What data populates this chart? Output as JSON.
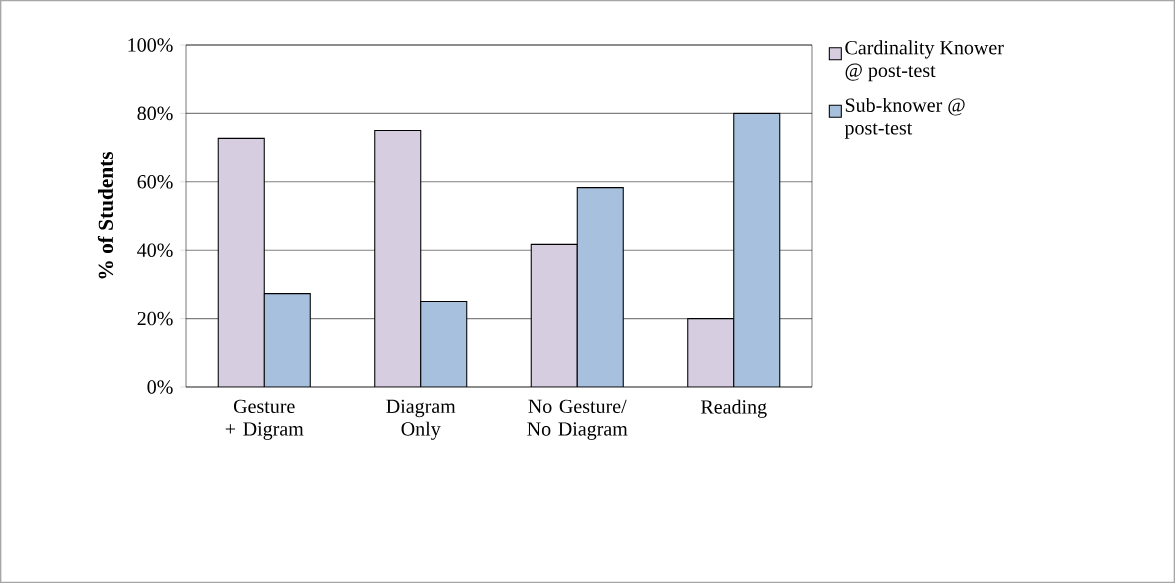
{
  "chart_data": {
    "type": "bar",
    "ylabel": "% of Students",
    "categories": [
      "Gesture + Digram",
      "Diagram Only",
      "No Gesture/ No Diagram",
      "Reading"
    ],
    "series": [
      {
        "name": "Cardinality Knower @ post-test",
        "color": "#d6cde1",
        "values": [
          72.7,
          75,
          41.7,
          20
        ]
      },
      {
        "name": "Sub-knower @ post-test",
        "color": "#a7c0de",
        "values": [
          27.3,
          25,
          58.3,
          80
        ]
      }
    ],
    "ylim": [
      0,
      100
    ],
    "yticks": [
      {
        "value": 0,
        "label": "0%"
      },
      {
        "value": 20,
        "label": "20%"
      },
      {
        "value": 40,
        "label": "40%"
      },
      {
        "value": 60,
        "label": "60%"
      },
      {
        "value": 80,
        "label": "80%"
      },
      {
        "value": 100,
        "label": "100%"
      }
    ],
    "grid": "y",
    "legend": "top right"
  }
}
